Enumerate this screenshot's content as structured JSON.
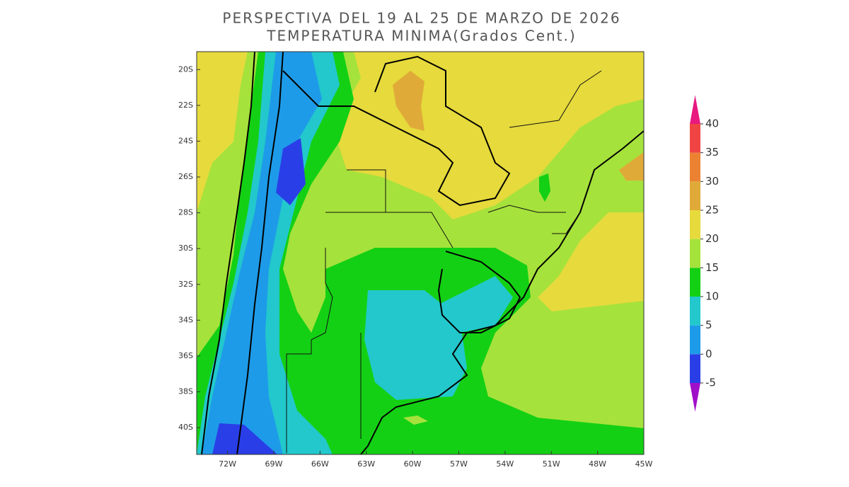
{
  "title": [
    "PERSPECTIVA DEL 19 AL 25 DE MARZO DE 2026",
    "TEMPERATURA MINIMA(Grados Cent.)"
  ],
  "map": {
    "xlim": [
      -74,
      -45
    ],
    "ylim": [
      -41.5,
      -19
    ],
    "yticks": [
      {
        "value": -20,
        "label": "20S"
      },
      {
        "value": -22,
        "label": "22S"
      },
      {
        "value": -24,
        "label": "24S"
      },
      {
        "value": -26,
        "label": "26S"
      },
      {
        "value": -28,
        "label": "28S"
      },
      {
        "value": -30,
        "label": "30S"
      },
      {
        "value": -32,
        "label": "32S"
      },
      {
        "value": -34,
        "label": "34S"
      },
      {
        "value": -36,
        "label": "36S"
      },
      {
        "value": -38,
        "label": "38S"
      },
      {
        "value": -40,
        "label": "40S"
      }
    ],
    "xticks": [
      {
        "value": -72,
        "label": "72W"
      },
      {
        "value": -69,
        "label": "69W"
      },
      {
        "value": -66,
        "label": "66W"
      },
      {
        "value": -63,
        "label": "63W"
      },
      {
        "value": -60,
        "label": "60W"
      },
      {
        "value": -57,
        "label": "57W"
      },
      {
        "value": -54,
        "label": "54W"
      },
      {
        "value": -51,
        "label": "51W"
      },
      {
        "value": -48,
        "label": "48W"
      },
      {
        "value": -45,
        "label": "45W"
      }
    ]
  },
  "colorbar": {
    "levels": [
      -5,
      0,
      5,
      10,
      15,
      20,
      25,
      30,
      35,
      40
    ],
    "colors": [
      "#2a3ee8",
      "#1e9be8",
      "#22c8cc",
      "#14d014",
      "#a6e23c",
      "#e6da3c",
      "#e0aa38",
      "#ea8232",
      "#f04444"
    ],
    "under_color": "#a010c8",
    "over_color": "#e8187f"
  }
}
